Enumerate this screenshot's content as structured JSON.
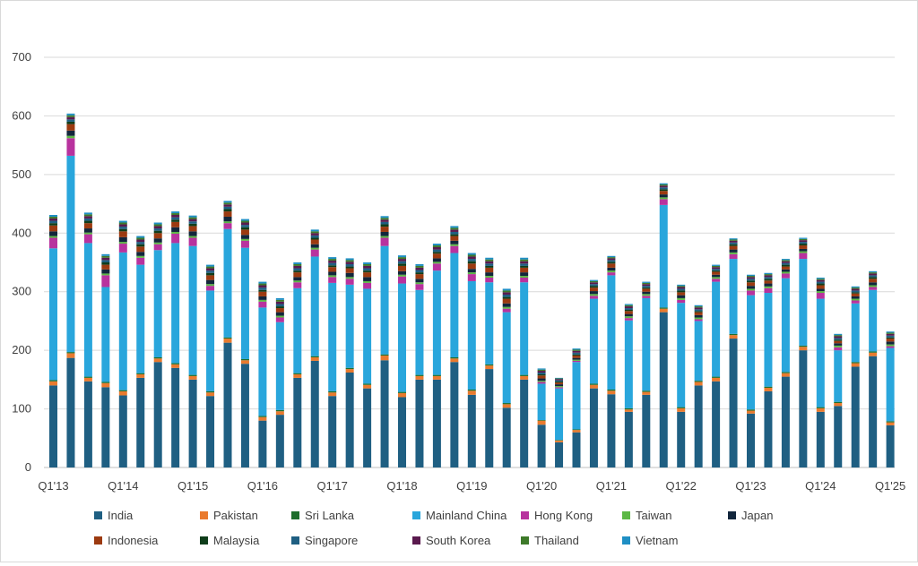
{
  "chart_data": {
    "type": "bar",
    "stacked": true,
    "title": "",
    "xlabel": "",
    "ylabel": "",
    "ylim": [
      0,
      700
    ],
    "yticks": [
      0,
      100,
      200,
      300,
      400,
      500,
      600,
      700
    ],
    "grid": true,
    "legend_position": "bottom",
    "x_tick_labels": [
      {
        "index": 0,
        "label": "Q1'13"
      },
      {
        "index": 4,
        "label": "Q1'14"
      },
      {
        "index": 8,
        "label": "Q1'15"
      },
      {
        "index": 12,
        "label": "Q1'16"
      },
      {
        "index": 16,
        "label": "Q1'17"
      },
      {
        "index": 20,
        "label": "Q1'18"
      },
      {
        "index": 24,
        "label": "Q1'19"
      },
      {
        "index": 28,
        "label": "Q1'20"
      },
      {
        "index": 32,
        "label": "Q1'21"
      },
      {
        "index": 36,
        "label": "Q1'22"
      },
      {
        "index": 40,
        "label": "Q1'23"
      },
      {
        "index": 44,
        "label": "Q1'24"
      },
      {
        "index": 48,
        "label": "Q1'25"
      }
    ],
    "categories": [
      "Q1'13",
      "Q2'13",
      "Q3'13",
      "Q4'13",
      "Q1'14",
      "Q2'14",
      "Q3'14",
      "Q4'14",
      "Q1'15",
      "Q2'15",
      "Q3'15",
      "Q4'15",
      "Q1'16",
      "Q2'16",
      "Q3'16",
      "Q4'16",
      "Q1'17",
      "Q2'17",
      "Q3'17",
      "Q4'17",
      "Q1'18",
      "Q2'18",
      "Q3'18",
      "Q4'18",
      "Q1'19",
      "Q2'19",
      "Q3'19",
      "Q4'19",
      "Q1'20",
      "Q2'20",
      "Q3'20",
      "Q4'20",
      "Q1'21",
      "Q2'21",
      "Q3'21",
      "Q4'21",
      "Q1'22",
      "Q2'22",
      "Q3'22",
      "Q4'22",
      "Q1'23",
      "Q2'23",
      "Q3'23",
      "Q4'23",
      "Q1'24",
      "Q2'24",
      "Q3'24",
      "Q4'24",
      "Q1'25"
    ],
    "series": [
      {
        "name": "India",
        "color": "#1f5f82",
        "values": [
          140,
          187,
          147,
          137,
          123,
          153,
          180,
          170,
          150,
          122,
          213,
          177,
          80,
          90,
          153,
          182,
          122,
          162,
          135,
          183,
          120,
          150,
          150,
          180,
          124,
          168,
          102,
          150,
          73,
          43,
          60,
          135,
          125,
          95,
          124,
          265,
          95,
          140,
          147,
          220,
          92,
          130,
          155,
          200,
          95,
          105,
          172,
          190,
          72
        ]
      },
      {
        "name": "Pakistan",
        "color": "#e97a2e",
        "values": [
          7,
          8,
          6,
          7,
          7,
          6,
          6,
          6,
          6,
          6,
          7,
          6,
          6,
          6,
          6,
          6,
          6,
          6,
          6,
          8,
          7,
          6,
          6,
          6,
          7,
          6,
          6,
          6,
          7,
          3,
          4,
          6,
          6,
          4,
          5,
          6,
          6,
          6,
          6,
          6,
          5,
          6,
          6,
          6,
          6,
          5,
          6,
          6,
          5
        ]
      },
      {
        "name": "Sri Lanka",
        "color": "#1e6e2c",
        "values": [
          2,
          2,
          2,
          2,
          2,
          2,
          2,
          2,
          2,
          2,
          2,
          2,
          2,
          2,
          2,
          2,
          2,
          2,
          2,
          2,
          2,
          2,
          2,
          2,
          2,
          2,
          2,
          2,
          1,
          1,
          1,
          2,
          2,
          2,
          2,
          2,
          2,
          2,
          2,
          2,
          2,
          2,
          2,
          2,
          2,
          2,
          2,
          2,
          2
        ]
      },
      {
        "name": "Mainland China",
        "color": "#29a6dc",
        "values": [
          225,
          335,
          228,
          162,
          235,
          185,
          183,
          205,
          220,
          172,
          185,
          190,
          185,
          150,
          145,
          170,
          185,
          142,
          162,
          185,
          185,
          145,
          178,
          178,
          185,
          140,
          155,
          158,
          62,
          88,
          115,
          145,
          195,
          150,
          158,
          175,
          178,
          102,
          162,
          128,
          195,
          160,
          160,
          148,
          185,
          88,
          100,
          105,
          125
        ]
      },
      {
        "name": "Hong Kong",
        "color": "#b8329e",
        "values": [
          18,
          30,
          15,
          20,
          15,
          12,
          10,
          16,
          14,
          8,
          10,
          12,
          10,
          8,
          10,
          12,
          10,
          10,
          10,
          14,
          12,
          10,
          12,
          12,
          12,
          8,
          6,
          8,
          3,
          2,
          2,
          5,
          5,
          4,
          4,
          10,
          5,
          3,
          5,
          8,
          8,
          8,
          8,
          10,
          10,
          5,
          5,
          5,
          3
        ]
      },
      {
        "name": "Taiwan",
        "color": "#5cb845",
        "values": [
          3,
          4,
          3,
          3,
          3,
          3,
          3,
          3,
          3,
          3,
          3,
          3,
          3,
          3,
          3,
          3,
          3,
          3,
          3,
          3,
          3,
          3,
          3,
          3,
          3,
          3,
          3,
          3,
          2,
          2,
          2,
          3,
          3,
          3,
          3,
          3,
          3,
          3,
          3,
          3,
          3,
          3,
          3,
          3,
          3,
          3,
          3,
          3,
          3
        ]
      },
      {
        "name": "Japan",
        "color": "#12263c",
        "values": [
          8,
          9,
          7,
          7,
          8,
          7,
          7,
          8,
          8,
          7,
          8,
          7,
          6,
          6,
          6,
          6,
          6,
          7,
          7,
          7,
          6,
          6,
          6,
          6,
          6,
          6,
          6,
          6,
          4,
          3,
          3,
          5,
          5,
          4,
          4,
          5,
          5,
          4,
          4,
          5,
          5,
          5,
          4,
          4,
          4,
          4,
          4,
          5,
          5
        ]
      },
      {
        "name": "Indonesia",
        "color": "#9c3a10",
        "values": [
          10,
          11,
          9,
          8,
          10,
          9,
          9,
          9,
          9,
          8,
          9,
          9,
          8,
          7,
          8,
          8,
          8,
          8,
          8,
          9,
          9,
          8,
          8,
          8,
          9,
          8,
          8,
          8,
          5,
          3,
          4,
          6,
          7,
          5,
          5,
          6,
          5,
          5,
          5,
          6,
          6,
          5,
          5,
          6,
          6,
          4,
          5,
          6,
          5
        ]
      },
      {
        "name": "Malaysia",
        "color": "#0f3d1a",
        "values": [
          4,
          4,
          4,
          4,
          4,
          4,
          4,
          4,
          4,
          4,
          4,
          4,
          3,
          3,
          3,
          3,
          3,
          3,
          3,
          4,
          4,
          3,
          3,
          3,
          4,
          3,
          3,
          3,
          2,
          2,
          2,
          3,
          3,
          2,
          2,
          3,
          3,
          2,
          2,
          3,
          3,
          3,
          3,
          3,
          3,
          2,
          2,
          3,
          2
        ]
      },
      {
        "name": "Singapore",
        "color": "#1f5f82",
        "values": [
          4,
          4,
          4,
          4,
          4,
          4,
          4,
          4,
          4,
          4,
          4,
          4,
          4,
          4,
          4,
          4,
          4,
          4,
          4,
          4,
          4,
          4,
          4,
          4,
          4,
          4,
          4,
          4,
          3,
          2,
          3,
          3,
          3,
          3,
          3,
          3,
          3,
          3,
          3,
          3,
          3,
          3,
          3,
          3,
          3,
          3,
          3,
          3,
          3
        ]
      },
      {
        "name": "South Korea",
        "color": "#5a1a4e",
        "values": [
          4,
          4,
          4,
          4,
          4,
          4,
          4,
          4,
          4,
          4,
          4,
          4,
          4,
          4,
          4,
          4,
          4,
          4,
          4,
          4,
          4,
          4,
          4,
          4,
          4,
          4,
          4,
          4,
          3,
          2,
          3,
          3,
          3,
          3,
          3,
          3,
          3,
          3,
          3,
          3,
          3,
          3,
          3,
          3,
          3,
          3,
          3,
          3,
          3
        ]
      },
      {
        "name": "Thailand",
        "color": "#3e7a2a",
        "values": [
          3,
          3,
          3,
          3,
          3,
          3,
          3,
          3,
          3,
          3,
          3,
          3,
          3,
          3,
          3,
          3,
          3,
          3,
          3,
          3,
          3,
          3,
          3,
          3,
          3,
          3,
          3,
          3,
          2,
          1,
          2,
          2,
          2,
          2,
          2,
          2,
          2,
          2,
          2,
          2,
          2,
          2,
          2,
          2,
          2,
          2,
          2,
          2,
          2
        ]
      },
      {
        "name": "Vietnam",
        "color": "#1f8fc4",
        "values": [
          3,
          3,
          3,
          3,
          3,
          3,
          3,
          3,
          3,
          3,
          3,
          3,
          3,
          3,
          3,
          3,
          3,
          3,
          3,
          3,
          3,
          3,
          3,
          3,
          3,
          3,
          3,
          3,
          2,
          1,
          2,
          2,
          2,
          2,
          2,
          2,
          2,
          2,
          2,
          2,
          2,
          2,
          2,
          2,
          2,
          2,
          2,
          2,
          2
        ]
      }
    ]
  }
}
